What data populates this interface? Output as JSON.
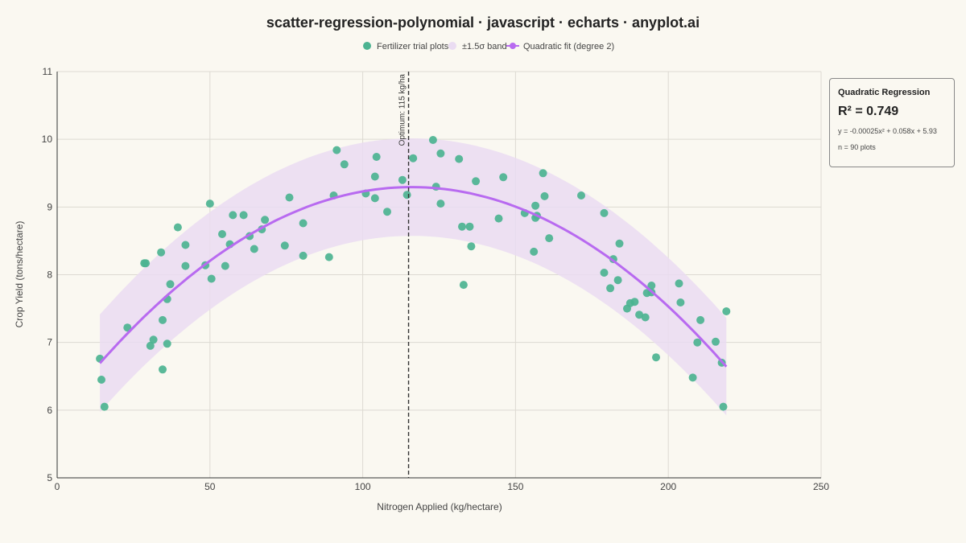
{
  "title": "scatter-regression-polynomial · javascript · echarts · anyplot.ai",
  "legend": {
    "points_label": "Fertilizer trial plots",
    "band_label": "±1.5σ band",
    "fit_label": "Quadratic fit (degree 2)"
  },
  "stats": {
    "heading": "Quadratic Regression",
    "r2": "R² = 0.749",
    "equation": "y = -0.00025x² + 0.058x + 5.93",
    "n": "n = 90 plots"
  },
  "colors": {
    "points": "#4CB391",
    "fit": "#B86AF0",
    "band": "#EADCF2",
    "background": "#FAF8F1"
  },
  "chart_data": {
    "type": "scatter",
    "title": "scatter-regression-polynomial · javascript · echarts · anyplot.ai",
    "xlabel": "Nitrogen Applied (kg/hectare)",
    "ylabel": "Crop Yield (tons/hectare)",
    "xlim": [
      0,
      250
    ],
    "ylim": [
      5,
      11
    ],
    "x_ticks": [
      0,
      50,
      100,
      150,
      200,
      250
    ],
    "y_ticks": [
      5,
      6,
      7,
      8,
      9,
      10,
      11
    ],
    "grid": true,
    "legend_position": "top-center",
    "annotation": {
      "x": 115,
      "text": "Optimum: 115 kg/ha",
      "style": "dashed-vertical-line"
    },
    "fit": {
      "a": -0.00025,
      "b": 0.058,
      "c": 5.93,
      "x_range": [
        14,
        219
      ],
      "band_halfwidth": 0.72
    },
    "series": [
      {
        "name": "Fertilizer trial plots",
        "points": [
          [
            14,
            6.76
          ],
          [
            14.5,
            6.45
          ],
          [
            15.5,
            6.05
          ],
          [
            23,
            7.22
          ],
          [
            28.5,
            8.17
          ],
          [
            29,
            8.17
          ],
          [
            30.5,
            6.95
          ],
          [
            31.5,
            7.04
          ],
          [
            34,
            8.33
          ],
          [
            34.5,
            7.33
          ],
          [
            34.5,
            6.6
          ],
          [
            36,
            7.64
          ],
          [
            36,
            6.98
          ],
          [
            37,
            7.86
          ],
          [
            39.5,
            8.7
          ],
          [
            42,
            8.44
          ],
          [
            42,
            8.13
          ],
          [
            48.5,
            8.14
          ],
          [
            50,
            9.05
          ],
          [
            50.5,
            7.94
          ],
          [
            54,
            8.6
          ],
          [
            55,
            8.13
          ],
          [
            56.5,
            8.45
          ],
          [
            57.5,
            8.88
          ],
          [
            61,
            8.88
          ],
          [
            63,
            8.57
          ],
          [
            64.5,
            8.38
          ],
          [
            67,
            8.67
          ],
          [
            68,
            8.81
          ],
          [
            74.5,
            8.43
          ],
          [
            76,
            9.14
          ],
          [
            80.5,
            8.28
          ],
          [
            80.5,
            8.76
          ],
          [
            89,
            8.26
          ],
          [
            90.5,
            9.17
          ],
          [
            91.5,
            9.84
          ],
          [
            94,
            9.63
          ],
          [
            101,
            9.2
          ],
          [
            104,
            9.13
          ],
          [
            104,
            9.45
          ],
          [
            104.5,
            9.74
          ],
          [
            108,
            8.93
          ],
          [
            113,
            9.4
          ],
          [
            114.5,
            9.18
          ],
          [
            116.5,
            9.72
          ],
          [
            123,
            9.99
          ],
          [
            124,
            9.3
          ],
          [
            125.5,
            9.05
          ],
          [
            125.5,
            9.79
          ],
          [
            131.5,
            9.71
          ],
          [
            132.5,
            8.71
          ],
          [
            133,
            7.85
          ],
          [
            135,
            8.71
          ],
          [
            135.5,
            8.42
          ],
          [
            137,
            9.38
          ],
          [
            144.5,
            8.83
          ],
          [
            146,
            9.44
          ],
          [
            153,
            8.91
          ],
          [
            156.5,
            8.84
          ],
          [
            157,
            8.87
          ],
          [
            156.5,
            9.02
          ],
          [
            156,
            8.34
          ],
          [
            159,
            9.5
          ],
          [
            159.5,
            9.16
          ],
          [
            161,
            8.54
          ],
          [
            171.5,
            9.17
          ],
          [
            179,
            8.03
          ],
          [
            179,
            8.91
          ],
          [
            181,
            7.8
          ],
          [
            182,
            8.23
          ],
          [
            183.5,
            7.92
          ],
          [
            184,
            8.46
          ],
          [
            186.5,
            7.5
          ],
          [
            187.5,
            7.58
          ],
          [
            189,
            7.6
          ],
          [
            190.5,
            7.41
          ],
          [
            192.5,
            7.37
          ],
          [
            193,
            7.73
          ],
          [
            194.5,
            7.84
          ],
          [
            194.5,
            7.74
          ],
          [
            196,
            6.78
          ],
          [
            203.5,
            7.87
          ],
          [
            204,
            7.59
          ],
          [
            208,
            6.48
          ],
          [
            209.5,
            7.0
          ],
          [
            210.5,
            7.33
          ],
          [
            215.5,
            7.01
          ],
          [
            217.5,
            6.7
          ],
          [
            218,
            6.05
          ],
          [
            219,
            7.46
          ]
        ]
      }
    ]
  }
}
